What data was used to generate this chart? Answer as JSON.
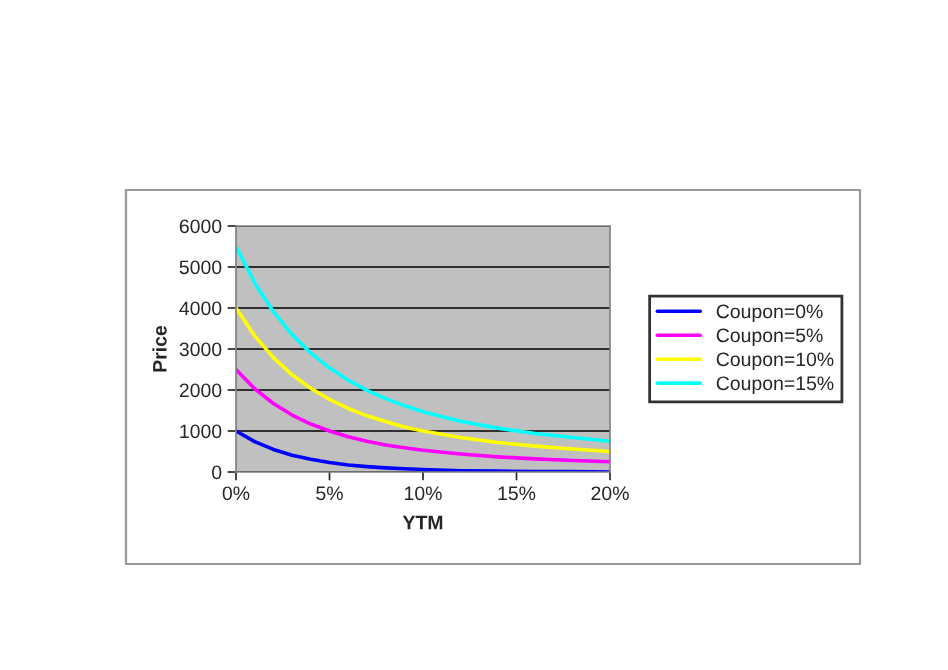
{
  "chart_data": {
    "type": "line",
    "xlabel": "YTM",
    "ylabel": "Price",
    "x": [
      0,
      1,
      2,
      3,
      4,
      5,
      6,
      7,
      8,
      9,
      10,
      12,
      14,
      16,
      18,
      20
    ],
    "series": [
      {
        "name": "Coupon=0%",
        "color": "#0000ff",
        "values": [
          1000,
          740,
          550,
          410,
          310,
          230,
          170,
          130,
          100,
          80,
          60,
          30,
          20,
          10,
          10,
          0
        ]
      },
      {
        "name": "Coupon=5%",
        "color": "#ff00ff",
        "values": [
          2500,
          2030,
          1670,
          1390,
          1170,
          1000,
          860,
          750,
          660,
          590,
          530,
          440,
          370,
          320,
          280,
          250
        ]
      },
      {
        "name": "Coupon=10%",
        "color": "#ffff00",
        "values": [
          4000,
          3320,
          2790,
          2370,
          2040,
          1770,
          1550,
          1370,
          1230,
          1100,
          1000,
          840,
          720,
          630,
          560,
          500
        ]
      },
      {
        "name": "Coupon=15%",
        "color": "#00ffff",
        "values": [
          5500,
          4610,
          3910,
          3350,
          2900,
          2540,
          2240,
          1990,
          1790,
          1620,
          1470,
          1240,
          1070,
          940,
          840,
          750
        ]
      }
    ],
    "xlim": [
      0,
      20
    ],
    "xticks": [
      {
        "value": 0,
        "label": "0%"
      },
      {
        "value": 5,
        "label": "5%"
      },
      {
        "value": 10,
        "label": "10%"
      },
      {
        "value": 15,
        "label": "15%"
      },
      {
        "value": 20,
        "label": "20%"
      }
    ],
    "ylim": [
      0,
      6000
    ],
    "yticks": [
      0,
      1000,
      2000,
      3000,
      4000,
      5000,
      6000
    ],
    "grid": "y",
    "legend": "right",
    "marker": "none",
    "line_style": "solid"
  }
}
